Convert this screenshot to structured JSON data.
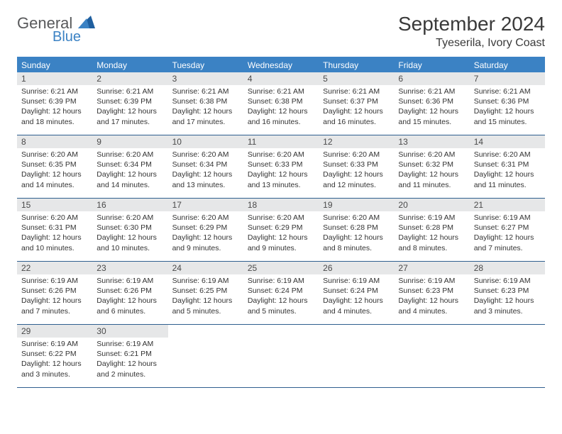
{
  "logo": {
    "general": "General",
    "blue": "Blue"
  },
  "title": "September 2024",
  "location": "Tyeserila, Ivory Coast",
  "header_color": "#3b82c4",
  "daynum_bg": "#e6e7e8",
  "border_color": "#2f5f8f",
  "headers": [
    "Sunday",
    "Monday",
    "Tuesday",
    "Wednesday",
    "Thursday",
    "Friday",
    "Saturday"
  ],
  "weeks": [
    [
      {
        "n": "1",
        "sr": "Sunrise: 6:21 AM",
        "ss": "Sunset: 6:39 PM",
        "d1": "Daylight: 12 hours",
        "d2": "and 18 minutes."
      },
      {
        "n": "2",
        "sr": "Sunrise: 6:21 AM",
        "ss": "Sunset: 6:39 PM",
        "d1": "Daylight: 12 hours",
        "d2": "and 17 minutes."
      },
      {
        "n": "3",
        "sr": "Sunrise: 6:21 AM",
        "ss": "Sunset: 6:38 PM",
        "d1": "Daylight: 12 hours",
        "d2": "and 17 minutes."
      },
      {
        "n": "4",
        "sr": "Sunrise: 6:21 AM",
        "ss": "Sunset: 6:38 PM",
        "d1": "Daylight: 12 hours",
        "d2": "and 16 minutes."
      },
      {
        "n": "5",
        "sr": "Sunrise: 6:21 AM",
        "ss": "Sunset: 6:37 PM",
        "d1": "Daylight: 12 hours",
        "d2": "and 16 minutes."
      },
      {
        "n": "6",
        "sr": "Sunrise: 6:21 AM",
        "ss": "Sunset: 6:36 PM",
        "d1": "Daylight: 12 hours",
        "d2": "and 15 minutes."
      },
      {
        "n": "7",
        "sr": "Sunrise: 6:21 AM",
        "ss": "Sunset: 6:36 PM",
        "d1": "Daylight: 12 hours",
        "d2": "and 15 minutes."
      }
    ],
    [
      {
        "n": "8",
        "sr": "Sunrise: 6:20 AM",
        "ss": "Sunset: 6:35 PM",
        "d1": "Daylight: 12 hours",
        "d2": "and 14 minutes."
      },
      {
        "n": "9",
        "sr": "Sunrise: 6:20 AM",
        "ss": "Sunset: 6:34 PM",
        "d1": "Daylight: 12 hours",
        "d2": "and 14 minutes."
      },
      {
        "n": "10",
        "sr": "Sunrise: 6:20 AM",
        "ss": "Sunset: 6:34 PM",
        "d1": "Daylight: 12 hours",
        "d2": "and 13 minutes."
      },
      {
        "n": "11",
        "sr": "Sunrise: 6:20 AM",
        "ss": "Sunset: 6:33 PM",
        "d1": "Daylight: 12 hours",
        "d2": "and 13 minutes."
      },
      {
        "n": "12",
        "sr": "Sunrise: 6:20 AM",
        "ss": "Sunset: 6:33 PM",
        "d1": "Daylight: 12 hours",
        "d2": "and 12 minutes."
      },
      {
        "n": "13",
        "sr": "Sunrise: 6:20 AM",
        "ss": "Sunset: 6:32 PM",
        "d1": "Daylight: 12 hours",
        "d2": "and 11 minutes."
      },
      {
        "n": "14",
        "sr": "Sunrise: 6:20 AM",
        "ss": "Sunset: 6:31 PM",
        "d1": "Daylight: 12 hours",
        "d2": "and 11 minutes."
      }
    ],
    [
      {
        "n": "15",
        "sr": "Sunrise: 6:20 AM",
        "ss": "Sunset: 6:31 PM",
        "d1": "Daylight: 12 hours",
        "d2": "and 10 minutes."
      },
      {
        "n": "16",
        "sr": "Sunrise: 6:20 AM",
        "ss": "Sunset: 6:30 PM",
        "d1": "Daylight: 12 hours",
        "d2": "and 10 minutes."
      },
      {
        "n": "17",
        "sr": "Sunrise: 6:20 AM",
        "ss": "Sunset: 6:29 PM",
        "d1": "Daylight: 12 hours",
        "d2": "and 9 minutes."
      },
      {
        "n": "18",
        "sr": "Sunrise: 6:20 AM",
        "ss": "Sunset: 6:29 PM",
        "d1": "Daylight: 12 hours",
        "d2": "and 9 minutes."
      },
      {
        "n": "19",
        "sr": "Sunrise: 6:20 AM",
        "ss": "Sunset: 6:28 PM",
        "d1": "Daylight: 12 hours",
        "d2": "and 8 minutes."
      },
      {
        "n": "20",
        "sr": "Sunrise: 6:19 AM",
        "ss": "Sunset: 6:28 PM",
        "d1": "Daylight: 12 hours",
        "d2": "and 8 minutes."
      },
      {
        "n": "21",
        "sr": "Sunrise: 6:19 AM",
        "ss": "Sunset: 6:27 PM",
        "d1": "Daylight: 12 hours",
        "d2": "and 7 minutes."
      }
    ],
    [
      {
        "n": "22",
        "sr": "Sunrise: 6:19 AM",
        "ss": "Sunset: 6:26 PM",
        "d1": "Daylight: 12 hours",
        "d2": "and 7 minutes."
      },
      {
        "n": "23",
        "sr": "Sunrise: 6:19 AM",
        "ss": "Sunset: 6:26 PM",
        "d1": "Daylight: 12 hours",
        "d2": "and 6 minutes."
      },
      {
        "n": "24",
        "sr": "Sunrise: 6:19 AM",
        "ss": "Sunset: 6:25 PM",
        "d1": "Daylight: 12 hours",
        "d2": "and 5 minutes."
      },
      {
        "n": "25",
        "sr": "Sunrise: 6:19 AM",
        "ss": "Sunset: 6:24 PM",
        "d1": "Daylight: 12 hours",
        "d2": "and 5 minutes."
      },
      {
        "n": "26",
        "sr": "Sunrise: 6:19 AM",
        "ss": "Sunset: 6:24 PM",
        "d1": "Daylight: 12 hours",
        "d2": "and 4 minutes."
      },
      {
        "n": "27",
        "sr": "Sunrise: 6:19 AM",
        "ss": "Sunset: 6:23 PM",
        "d1": "Daylight: 12 hours",
        "d2": "and 4 minutes."
      },
      {
        "n": "28",
        "sr": "Sunrise: 6:19 AM",
        "ss": "Sunset: 6:23 PM",
        "d1": "Daylight: 12 hours",
        "d2": "and 3 minutes."
      }
    ],
    [
      {
        "n": "29",
        "sr": "Sunrise: 6:19 AM",
        "ss": "Sunset: 6:22 PM",
        "d1": "Daylight: 12 hours",
        "d2": "and 3 minutes."
      },
      {
        "n": "30",
        "sr": "Sunrise: 6:19 AM",
        "ss": "Sunset: 6:21 PM",
        "d1": "Daylight: 12 hours",
        "d2": "and 2 minutes."
      },
      null,
      null,
      null,
      null,
      null
    ]
  ]
}
